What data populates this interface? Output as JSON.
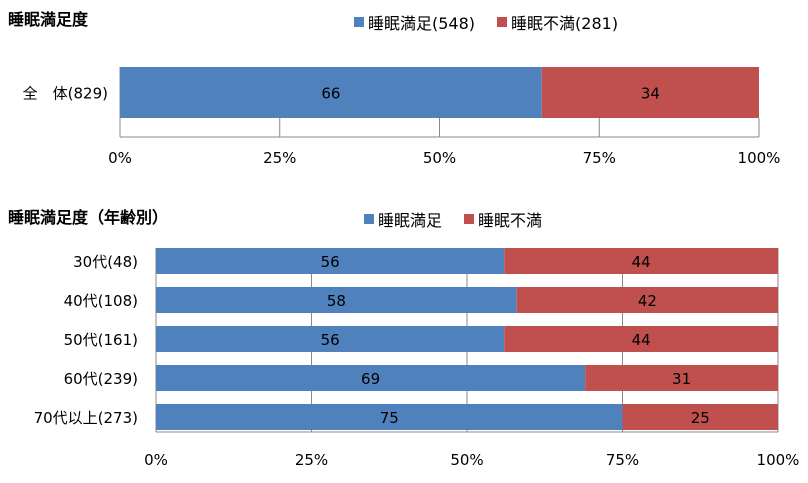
{
  "colors": {
    "satisfied": "#4F81BD",
    "dissatisfied": "#C0504D",
    "axis": "#888888"
  },
  "chart_data": [
    {
      "type": "bar",
      "orientation": "horizontal",
      "stacked": true,
      "title": "睡眠満足度",
      "categories": [
        "全　体(829)"
      ],
      "series": [
        {
          "name": "睡眠満足(548)",
          "values": [
            66
          ]
        },
        {
          "name": "睡眠不満(281)",
          "values": [
            34
          ]
        }
      ],
      "x_ticks": [
        "0%",
        "25%",
        "50%",
        "75%",
        "100%"
      ],
      "xlim": [
        0,
        100
      ],
      "legend_position": "top-right"
    },
    {
      "type": "bar",
      "orientation": "horizontal",
      "stacked": true,
      "title": "睡眠満足度（年齢別）",
      "categories": [
        "30代(48)",
        "40代(108)",
        "50代(161)",
        "60代(239)",
        "70代以上(273)"
      ],
      "series": [
        {
          "name": "睡眠満足",
          "values": [
            56,
            58,
            56,
            69,
            75
          ]
        },
        {
          "name": "睡眠不満",
          "values": [
            44,
            42,
            44,
            31,
            25
          ]
        }
      ],
      "x_ticks": [
        "0%",
        "25%",
        "50%",
        "75%",
        "100%"
      ],
      "xlim": [
        0,
        100
      ],
      "legend_position": "top-right"
    }
  ]
}
